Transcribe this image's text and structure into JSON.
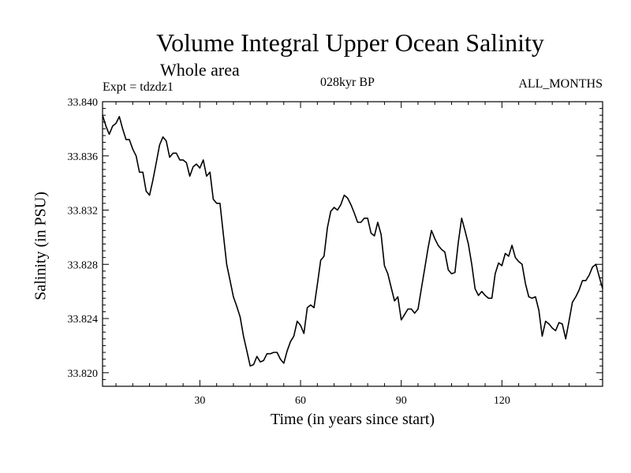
{
  "chart_data": {
    "type": "line",
    "title": "Volume Integral Upper Ocean Salinity",
    "subtitle": "Whole area",
    "annotations": {
      "experiment": "Expt = tdzdz1",
      "period": "028kyr BP",
      "months": "ALL_MONTHS"
    },
    "xlabel": "Time (in years since start)",
    "ylabel": "Salinity (in PSU)",
    "xlim": [
      1,
      150
    ],
    "ylim": [
      33.819,
      33.84
    ],
    "xticks": [
      30,
      60,
      90,
      120
    ],
    "yticks": [
      "33.820",
      "33.824",
      "33.828",
      "33.832",
      "33.836",
      "33.840"
    ],
    "grid": false,
    "series": [
      {
        "color": "#000000",
        "x": [
          1,
          2,
          3,
          4,
          5,
          6,
          7,
          8,
          9,
          10,
          11,
          12,
          13,
          14,
          15,
          16,
          17,
          18,
          19,
          20,
          21,
          22,
          23,
          24,
          25,
          26,
          27,
          28,
          29,
          30,
          31,
          32,
          33,
          34,
          35,
          36,
          37,
          38,
          39,
          40,
          41,
          42,
          43,
          44,
          45,
          46,
          47,
          48,
          49,
          50,
          51,
          52,
          53,
          54,
          55,
          56,
          57,
          58,
          59,
          60,
          61,
          62,
          63,
          64,
          65,
          66,
          67,
          68,
          69,
          70,
          71,
          72,
          73,
          74,
          75,
          76,
          77,
          78,
          79,
          80,
          81,
          82,
          83,
          84,
          85,
          86,
          87,
          88,
          89,
          90,
          91,
          92,
          93,
          94,
          95,
          96,
          97,
          98,
          99,
          100,
          101,
          102,
          103,
          104,
          105,
          106,
          107,
          108,
          109,
          110,
          111,
          112,
          113,
          114,
          115,
          116,
          117,
          118,
          119,
          120,
          121,
          122,
          123,
          124,
          125,
          126,
          127,
          128,
          129,
          130,
          131,
          132,
          133,
          134,
          135,
          136,
          137,
          138,
          139,
          140,
          141,
          142,
          143,
          144,
          145,
          146,
          147,
          148,
          149,
          150
        ],
        "y": [
          33.839,
          33.8382,
          33.8376,
          33.8382,
          33.8384,
          33.8389,
          33.838,
          33.8372,
          33.8372,
          33.8365,
          33.836,
          33.8348,
          33.8348,
          33.8334,
          33.8331,
          33.8342,
          33.8355,
          33.8368,
          33.8374,
          33.8371,
          33.8359,
          33.8362,
          33.8362,
          33.8357,
          33.8357,
          33.8355,
          33.8345,
          33.8352,
          33.8354,
          33.8351,
          33.8357,
          33.8345,
          33.8348,
          33.8328,
          33.8325,
          33.8325,
          33.8302,
          33.828,
          33.8268,
          33.8256,
          33.8249,
          33.8241,
          33.8227,
          33.8216,
          33.8205,
          33.8206,
          33.8212,
          33.8208,
          33.8209,
          33.8214,
          33.8214,
          33.8215,
          33.8215,
          33.821,
          33.8207,
          33.8216,
          33.8223,
          33.8227,
          33.8238,
          33.8235,
          33.8229,
          33.8248,
          33.825,
          33.8248,
          33.8265,
          33.8283,
          33.8286,
          33.8307,
          33.8319,
          33.8322,
          33.832,
          33.8324,
          33.8331,
          33.8329,
          33.8324,
          33.8318,
          33.8311,
          33.8311,
          33.8314,
          33.8314,
          33.8303,
          33.8301,
          33.8311,
          33.8302,
          33.8279,
          33.8273,
          33.8263,
          33.8253,
          33.8256,
          33.8239,
          33.8243,
          33.8247,
          33.8247,
          33.8244,
          33.8247,
          33.8262,
          33.8277,
          33.8292,
          33.8305,
          33.8299,
          33.8294,
          33.8291,
          33.8289,
          33.8276,
          33.8273,
          33.8274,
          33.8296,
          33.8314,
          33.8305,
          33.8295,
          33.828,
          33.8262,
          33.8257,
          33.826,
          33.8257,
          33.8255,
          33.8255,
          33.8273,
          33.8281,
          33.8279,
          33.8288,
          33.8286,
          33.8294,
          33.8285,
          33.8282,
          33.828,
          33.8266,
          33.8256,
          33.8255,
          33.8256,
          33.8246,
          33.8227,
          33.8238,
          33.8236,
          33.8233,
          33.8231,
          33.8237,
          33.8236,
          33.8225,
          33.8238,
          33.8252,
          33.8256,
          33.8261,
          33.8268,
          33.8268,
          33.8272,
          33.8278,
          33.828,
          33.8271,
          33.8262
        ]
      }
    ]
  }
}
